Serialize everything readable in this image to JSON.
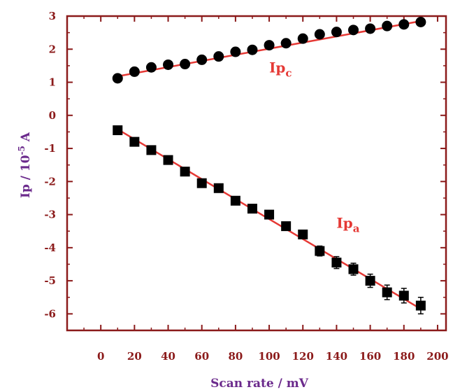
{
  "chart_data": {
    "type": "scatter",
    "xlabel": "Scan rate / mV",
    "ylabel_main": "Ip / 10",
    "ylabel_exp": "-5",
    "ylabel_unit": " A",
    "xlim": [
      -20,
      205
    ],
    "ylim": [
      -6.5,
      3
    ],
    "xticks": [
      0,
      20,
      40,
      60,
      80,
      100,
      120,
      140,
      160,
      180,
      200
    ],
    "yticks": [
      -6,
      -5,
      -4,
      -3,
      -2,
      -1,
      0,
      1,
      2,
      3
    ],
    "grid": false,
    "colors": {
      "axis": "#8b1a1a",
      "tick_label": "#8b1a1a",
      "axis_title": "#6b2a8c",
      "fit_line": "#e53935",
      "marker": "#000000",
      "series_label": "#e53935"
    },
    "series": [
      {
        "name_main": "Ip",
        "name_sub": "c",
        "marker": "circle",
        "label_pos": [
          100,
          1.3
        ],
        "x": [
          10,
          20,
          30,
          40,
          50,
          60,
          70,
          80,
          90,
          100,
          110,
          120,
          130,
          140,
          150,
          160,
          170,
          180,
          190
        ],
        "y": [
          1.12,
          1.32,
          1.45,
          1.53,
          1.55,
          1.68,
          1.78,
          1.92,
          1.98,
          2.12,
          2.18,
          2.32,
          2.45,
          2.52,
          2.58,
          2.62,
          2.7,
          2.75,
          2.82
        ],
        "fit": [
          [
            10,
            1.18
          ],
          [
            190,
            2.85
          ]
        ]
      },
      {
        "name_main": "Ip",
        "name_sub": "a",
        "marker": "square",
        "label_pos": [
          140,
          -3.4
        ],
        "x": [
          10,
          20,
          30,
          40,
          50,
          60,
          70,
          80,
          90,
          100,
          110,
          120,
          130,
          140,
          150,
          160,
          170,
          180,
          190
        ],
        "y": [
          -0.45,
          -0.8,
          -1.05,
          -1.35,
          -1.7,
          -2.05,
          -2.2,
          -2.58,
          -2.82,
          -3.0,
          -3.35,
          -3.6,
          -4.1,
          -4.45,
          -4.65,
          -5.0,
          -5.35,
          -5.45,
          -5.75
        ],
        "err": [
          0.05,
          0.05,
          0.06,
          0.06,
          0.06,
          0.07,
          0.07,
          0.08,
          0.08,
          0.08,
          0.1,
          0.12,
          0.15,
          0.18,
          0.18,
          0.2,
          0.22,
          0.22,
          0.25
        ],
        "fit": [
          [
            10,
            -0.42
          ],
          [
            190,
            -5.85
          ]
        ]
      }
    ]
  }
}
